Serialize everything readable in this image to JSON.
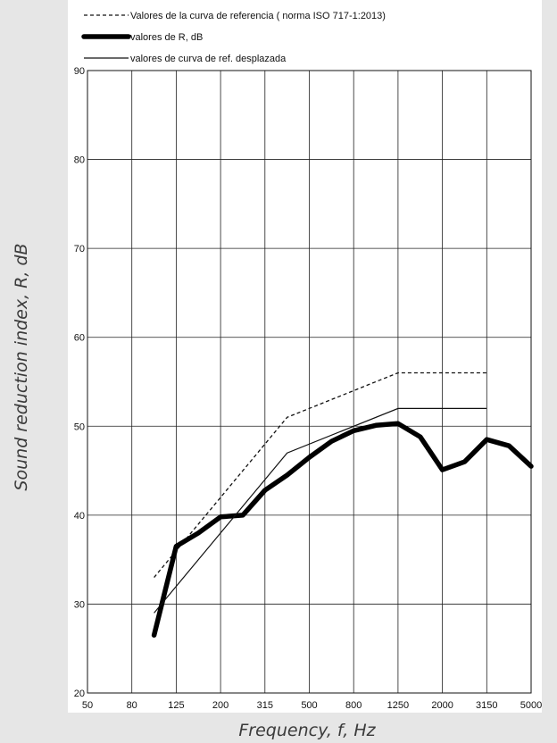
{
  "chart_data": {
    "type": "line",
    "xlabel": "Frequency, f, Hz",
    "ylabel": "Sound reduction index, R, dB",
    "x_ticks": [
      "50",
      "80",
      "125",
      "200",
      "315",
      "500",
      "800",
      "1250",
      "2000",
      "3150",
      "5000"
    ],
    "y_ticks": [
      "20",
      "30",
      "40",
      "50",
      "60",
      "70",
      "80",
      "90"
    ],
    "ylim": [
      20,
      90
    ],
    "grid": true,
    "legend_position": "top",
    "series": [
      {
        "name": "Valores de la curva de referencia ( norma ISO 717-1:2013)",
        "style": "dashed",
        "color": "#111111",
        "points": [
          {
            "x": "100",
            "y": 33
          },
          {
            "x": "160",
            "y": 39
          },
          {
            "x": "250",
            "y": 45
          },
          {
            "x": "400",
            "y": 51
          },
          {
            "x": "1250",
            "y": 56
          },
          {
            "x": "3150",
            "y": 56
          }
        ]
      },
      {
        "name": "valores de R, dB",
        "style": "thick",
        "color": "#000000",
        "points": [
          {
            "x": "100",
            "y": 26.5
          },
          {
            "x": "125",
            "y": 36.5
          },
          {
            "x": "160",
            "y": 38
          },
          {
            "x": "200",
            "y": 39.8
          },
          {
            "x": "250",
            "y": 40
          },
          {
            "x": "315",
            "y": 42.8
          },
          {
            "x": "400",
            "y": 44.5
          },
          {
            "x": "500",
            "y": 46.5
          },
          {
            "x": "630",
            "y": 48.3
          },
          {
            "x": "800",
            "y": 49.5
          },
          {
            "x": "1000",
            "y": 50.1
          },
          {
            "x": "1250",
            "y": 50.3
          },
          {
            "x": "1600",
            "y": 48.8
          },
          {
            "x": "2000",
            "y": 45.1
          },
          {
            "x": "2500",
            "y": 46
          },
          {
            "x": "3150",
            "y": 48.5
          },
          {
            "x": "4000",
            "y": 47.8
          },
          {
            "x": "5000",
            "y": 45.5
          }
        ]
      },
      {
        "name": "valores de curva de ref. desplazada",
        "style": "thin",
        "color": "#111111",
        "points": [
          {
            "x": "100",
            "y": 29
          },
          {
            "x": "160",
            "y": 35
          },
          {
            "x": "250",
            "y": 41
          },
          {
            "x": "400",
            "y": 47
          },
          {
            "x": "1250",
            "y": 52
          },
          {
            "x": "3150",
            "y": 52
          }
        ]
      }
    ]
  }
}
